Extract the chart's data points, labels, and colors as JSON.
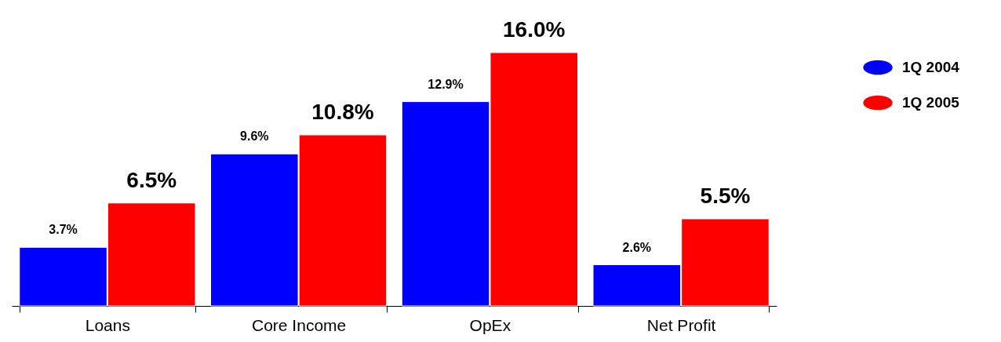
{
  "chart_data": {
    "type": "bar",
    "categories": [
      "Loans",
      "Core Income",
      "OpEx",
      "Net Profit"
    ],
    "series": [
      {
        "name": "1Q  2004",
        "color": "#0000ff",
        "values": [
          3.7,
          9.6,
          12.9,
          2.6
        ],
        "value_labels": [
          "3.7%",
          "9.6%",
          "12.9%",
          "2.6%"
        ]
      },
      {
        "name": "1Q 2005",
        "color": "#ff0000",
        "values": [
          6.5,
          10.8,
          16.0,
          5.5
        ],
        "value_labels": [
          "6.5%",
          "10.8%",
          "16.0%",
          "5.5%"
        ]
      }
    ],
    "legend": "right",
    "grid": false
  }
}
